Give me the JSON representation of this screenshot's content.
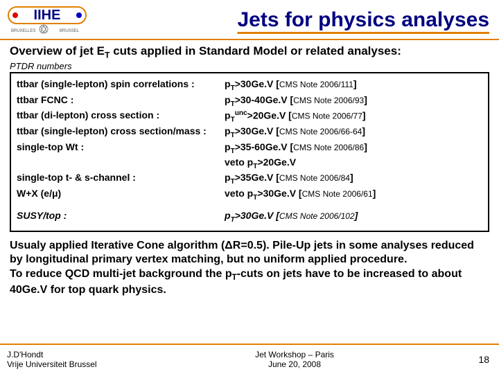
{
  "title": "Jets for physics analyses",
  "overview_prefix": "Overview of jet E",
  "overview_suffix": " cuts applied in Standard Model or related analyses:",
  "ptdr": "PTDR numbers",
  "rows": [
    {
      "label": "ttbar (single-lepton) spin correlations :",
      "cut_pre": "p",
      "cut_sub": "T",
      "cut_mid": ">30Ge.V [",
      "ref": "CMS Note 2006/111",
      "cut_end": "]"
    },
    {
      "label": "ttbar FCNC :",
      "cut_pre": "p",
      "cut_sub": "T",
      "cut_mid": ">30-40Ge.V [",
      "ref": "CMS Note 2006/93",
      "cut_end": "]"
    },
    {
      "label": "ttbar (di-lepton) cross section :",
      "cut_pre": "p",
      "cut_sub": "T",
      "cut_sup": "unc",
      "cut_mid": ">20Ge.V [",
      "ref": "CMS Note 2006/77",
      "cut_end": "]"
    },
    {
      "label": "ttbar (single-lepton) cross section/mass :",
      "cut_pre": "p",
      "cut_sub": "T",
      "cut_mid": ">30Ge.V [",
      "ref": "CMS Note 2006/66-64",
      "cut_end": "]"
    },
    {
      "label": "single-top Wt :",
      "cut_pre": "p",
      "cut_sub": "T",
      "cut_mid": ">35-60Ge.V [",
      "ref": "CMS Note 2006/86",
      "cut_end": "]"
    },
    {
      "label": "",
      "cut_veto": "veto p",
      "cut_sub": "T",
      "cut_mid": ">20Ge.V"
    },
    {
      "label": "single-top t- & s-channel :",
      "cut_pre": "p",
      "cut_sub": "T",
      "cut_mid": ">35Ge.V [",
      "ref": "CMS Note 2006/84",
      "cut_end": "]"
    },
    {
      "label_pre": "W+X (e/",
      "label_sym": "μ",
      "label_end": ")",
      "cut_veto": "veto p",
      "cut_sub": "T",
      "cut_mid": ">30Ge.V [",
      "ref": "CMS Note 2006/61",
      "cut_end": "]"
    }
  ],
  "susy": {
    "label": "SUSY/top :",
    "cut_pre": "p",
    "cut_sub": "T",
    "cut_mid": ">30Ge.V [",
    "ref": "CMS Note 2006/102",
    "cut_end": "]"
  },
  "para1_a": "Usualy applied Iterative Cone algorithm (",
  "para1_delta": "Δ",
  "para1_b": "R=0.5). Pile-Up jets in some analyses reduced by longitudinal primary vertex matching, but no uniform applied procedure.",
  "para2_a": "To reduce QCD multi-jet background the p",
  "para2_b": "-cuts on jets have to be increased to about 40Ge.V for top quark physics.",
  "footer": {
    "author": "J.D'Hondt",
    "affil": "Vrije Universiteit Brussel",
    "event": "Jet Workshop – Paris",
    "date": "June 20, 2008",
    "page": "18"
  },
  "colors": {
    "accent": "#e08000",
    "title": "#000080"
  }
}
